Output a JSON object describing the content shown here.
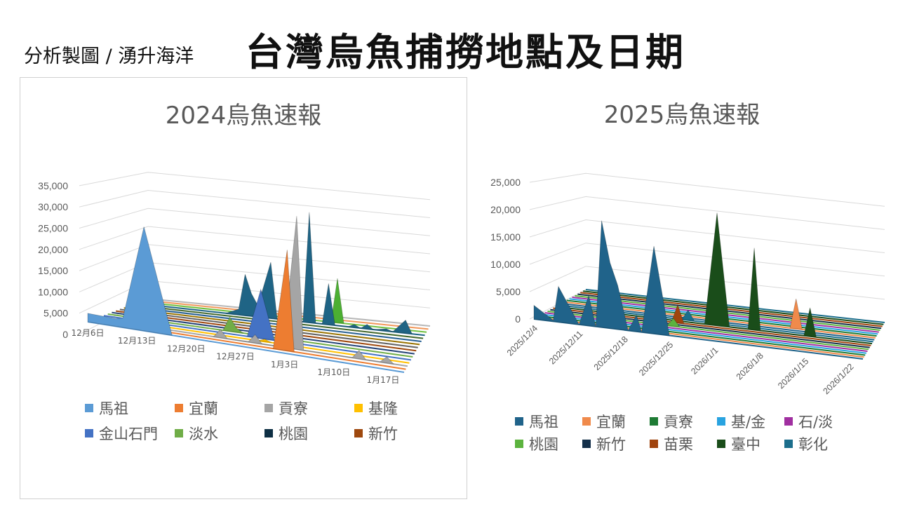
{
  "header": {
    "credit": "分析製圖 / 湧升海洋",
    "title": "台灣烏魚捕撈地點及日期"
  },
  "chart_data": [
    {
      "type": "area3d",
      "title": "2024烏魚速報",
      "ylim": [
        0,
        35000
      ],
      "y_ticks": [
        "0",
        "5,000",
        "10,000",
        "15,000",
        "20,000",
        "25,000",
        "30,000",
        "35,000"
      ],
      "x_labels": [
        {
          "day": 0,
          "label": "12月6日"
        },
        {
          "day": 7,
          "label": "12月13日"
        },
        {
          "day": 14,
          "label": "12月20日"
        },
        {
          "day": 21,
          "label": "12月27日"
        },
        {
          "day": 28,
          "label": "1月3日"
        },
        {
          "day": 35,
          "label": "1月10日"
        },
        {
          "day": 42,
          "label": "1月17日"
        }
      ],
      "days": 45,
      "rows": 16,
      "stripe_colors": [
        "#5b9bd5",
        "#ed7d31",
        "#a5a5a5",
        "#ffc000",
        "#4472c4",
        "#70ad47",
        "#264478",
        "#9e480e",
        "#636363",
        "#997300",
        "#255e91",
        "#43682b",
        "#1f6485",
        "#70c040",
        "#f1975a",
        "#b7b7b7"
      ],
      "series": [
        {
          "name": "馬祖",
          "color": "#5b9bd5",
          "row": 0,
          "points": [
            [
              0,
              2000
            ],
            [
              4,
              1800
            ],
            [
              5,
              2200
            ],
            [
              8,
              24500
            ],
            [
              12,
              0
            ]
          ]
        },
        {
          "name": "宜蘭",
          "color": "#ed7d31",
          "row": 1,
          "points": [
            [
              26,
              0
            ],
            [
              28,
              24000
            ],
            [
              29,
              0
            ]
          ]
        },
        {
          "name": "貢寮",
          "color": "#a5a5a5",
          "row": 2,
          "points": [
            [
              17,
              0
            ],
            [
              18,
              2000
            ],
            [
              19,
              0
            ],
            [
              22,
              0
            ],
            [
              23,
              2000
            ],
            [
              24,
              0
            ],
            [
              27,
              0
            ],
            [
              29,
              32000
            ],
            [
              30,
              0
            ],
            [
              37,
              0
            ],
            [
              38,
              2000
            ],
            [
              39,
              0
            ],
            [
              41,
              0
            ],
            [
              42,
              1500
            ],
            [
              43,
              0
            ]
          ]
        },
        {
          "name": "基隆",
          "color": "#ffc000",
          "row": 3,
          "points": [
            [
              23,
              0
            ],
            [
              24,
              600
            ],
            [
              25,
              0
            ]
          ]
        },
        {
          "name": "金山石門",
          "color": "#4472c4",
          "row": 4,
          "points": [
            [
              21,
              0
            ],
            [
              23,
              12000
            ],
            [
              25,
              0
            ]
          ]
        },
        {
          "name": "淡水",
          "color": "#70ad47",
          "row": 5,
          "points": [
            [
              17,
              0
            ],
            [
              18,
              3500
            ],
            [
              19,
              1000
            ],
            [
              20,
              0
            ]
          ]
        },
        {
          "name": "桃園",
          "color": "#0e2f44",
          "row": 6,
          "points": []
        },
        {
          "name": "新竹",
          "color": "#9e480e",
          "row": 7,
          "points": []
        },
        {
          "color": "#1f6485",
          "row": 12,
          "points": [
            [
              14,
              0
            ],
            [
              16,
              1500
            ],
            [
              17,
              11000
            ],
            [
              18,
              6000
            ],
            [
              19,
              3000
            ],
            [
              21,
              15000
            ],
            [
              22,
              0
            ],
            [
              26,
              0
            ],
            [
              27,
              29500
            ],
            [
              28,
              0
            ],
            [
              29,
              0
            ],
            [
              30,
              11000
            ],
            [
              31,
              0
            ],
            [
              33,
              0
            ],
            [
              34,
              800
            ],
            [
              35,
              0
            ],
            [
              36,
              1200
            ],
            [
              37,
              0
            ],
            [
              39,
              600
            ],
            [
              40,
              0
            ],
            [
              42,
              3500
            ],
            [
              43,
              0
            ]
          ]
        },
        {
          "color": "#4caf32",
          "row": 13,
          "points": [
            [
              30,
              0
            ],
            [
              31,
              12000
            ],
            [
              32,
              0
            ]
          ]
        }
      ]
    },
    {
      "type": "area3d",
      "title": "2025烏魚速報",
      "ylim": [
        0,
        25000
      ],
      "y_ticks": [
        "0",
        "5,000",
        "10,000",
        "15,000",
        "20,000",
        "25,000"
      ],
      "x_labels": [
        {
          "day": 0,
          "label": "2025/12/4"
        },
        {
          "day": 7,
          "label": "2025/12/11"
        },
        {
          "day": 14,
          "label": "2025/12/18"
        },
        {
          "day": 21,
          "label": "2025/12/25"
        },
        {
          "day": 28,
          "label": "2026/1/1"
        },
        {
          "day": 35,
          "label": "2026/1/8"
        },
        {
          "day": 42,
          "label": "2026/1/15"
        },
        {
          "day": 49,
          "label": "2026/1/22"
        }
      ],
      "days": 51,
      "rows": 20,
      "stripe_colors": [
        "#20638a",
        "#f08a4b",
        "#1e7b34",
        "#29a3e0",
        "#a02fa0",
        "#5cb33e",
        "#14304a",
        "#a0440e",
        "#1a4d1a",
        "#1c6e8c",
        "#20638a",
        "#f08a4b",
        "#1e7b34",
        "#29a3e0",
        "#a02fa0",
        "#5cb33e",
        "#14304a",
        "#a0440e",
        "#1a4d1a",
        "#1c6e8c"
      ],
      "series": [
        {
          "name": "馬祖",
          "color": "#20638a",
          "row": 0,
          "points": [
            [
              0,
              2500
            ],
            [
              3,
              200
            ],
            [
              3.8,
              6500
            ],
            [
              7,
              0
            ],
            [
              8.5,
              5500
            ],
            [
              9.6,
              0
            ],
            [
              10.5,
              19500
            ],
            [
              11.8,
              12000
            ],
            [
              13,
              8000
            ],
            [
              14.6,
              0
            ],
            [
              15.9,
              3000
            ],
            [
              16.7,
              0
            ],
            [
              18.6,
              16000
            ],
            [
              21,
              0
            ]
          ]
        },
        {
          "name": "宜蘭",
          "color": "#f08a4b",
          "row": 11,
          "points": [
            [
              37,
              0
            ],
            [
              38,
              6000
            ],
            [
              39,
              0
            ]
          ]
        },
        {
          "name": "貢寮",
          "color": "#1e7b34",
          "row": 2,
          "points": []
        },
        {
          "name": "基/金",
          "color": "#29a3e0",
          "row": 3,
          "points": []
        },
        {
          "name": "石/淡",
          "color": "#a02fa0",
          "row": 4,
          "points": []
        },
        {
          "name": "桃園",
          "color": "#5cb33e",
          "row": 5,
          "points": [
            [
              19,
              0
            ],
            [
              20,
              1500
            ],
            [
              21,
              0
            ]
          ]
        },
        {
          "name": "新竹",
          "color": "#14304a",
          "row": 6,
          "points": []
        },
        {
          "name": "苗栗",
          "color": "#a0440e",
          "row": 7,
          "points": [
            [
              19,
              0
            ],
            [
              20,
              3500
            ],
            [
              21,
              0
            ]
          ]
        },
        {
          "name": "臺中",
          "color": "#1a4d1a",
          "row": 8,
          "points": [
            [
              24,
              0
            ],
            [
              26,
              22000
            ],
            [
              28,
              0
            ],
            [
              31,
              0
            ],
            [
              32,
              16000
            ],
            [
              33,
              0
            ],
            [
              40,
              0
            ],
            [
              41,
              5600
            ],
            [
              42,
              0
            ]
          ]
        },
        {
          "name": "彰化",
          "color": "#1c6e8c",
          "row": 9,
          "points": [
            [
              20,
              0
            ],
            [
              21,
              2000
            ],
            [
              22,
              0
            ]
          ]
        }
      ]
    }
  ]
}
